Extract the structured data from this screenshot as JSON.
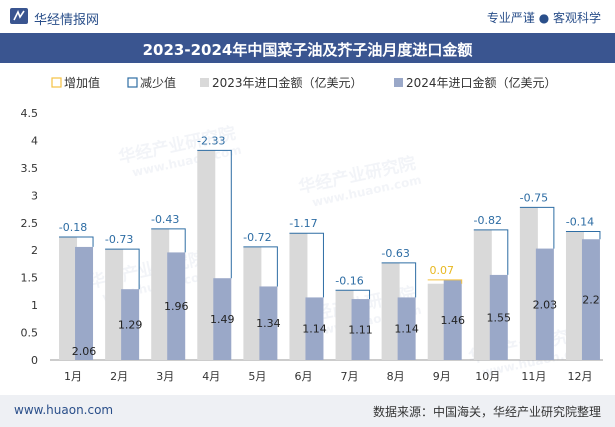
{
  "header": {
    "brand": "华经情报网",
    "slogan": "专业严谨 ● 客观科学"
  },
  "title": "2023-2024年中国菜子油及芥子油月度进口金额",
  "footer": {
    "website": "www.huaon.com",
    "source": "数据来源：中国海关，华经产业研究院整理"
  },
  "watermark": {
    "cn": "华经产业研究院",
    "en": "www.huaon.com"
  },
  "colors": {
    "bar2023": "#d9d9d9",
    "bar2024": "#9aa8c8",
    "increase": "#f5c242",
    "decrease": "#2e6da4",
    "increase_label": "#e8b820",
    "decrease_label": "#2e6da4",
    "brand": "#3a5590"
  },
  "chart_data": {
    "type": "bar",
    "categories": [
      "1月",
      "2月",
      "3月",
      "4月",
      "5月",
      "6月",
      "7月",
      "8月",
      "9月",
      "10月",
      "11月",
      "12月"
    ],
    "series": [
      {
        "name": "2023年进口金额（亿美元）",
        "values": [
          2.24,
          2.02,
          2.39,
          3.82,
          2.06,
          2.31,
          1.27,
          1.77,
          1.39,
          2.37,
          2.78,
          2.34
        ]
      },
      {
        "name": "2024年进口金额（亿美元）",
        "values": [
          2.06,
          1.29,
          1.96,
          1.49,
          1.34,
          1.14,
          1.11,
          1.14,
          1.46,
          1.55,
          2.03,
          2.2
        ]
      }
    ],
    "changes": [
      -0.18,
      -0.73,
      -0.43,
      -2.33,
      -0.72,
      -1.17,
      -0.16,
      -0.63,
      0.07,
      -0.82,
      -0.75,
      -0.14
    ],
    "change_labels": [
      "-0.18",
      "-0.73",
      "-0.43",
      "-2.33",
      "-0.72",
      "-1.17",
      "-0.16",
      "-0.63",
      "0.07",
      "-0.82",
      "-0.75",
      "-0.14"
    ],
    "value_labels_2024": [
      "2.06",
      "1.29",
      "1.96",
      "1.49",
      "1.34",
      "1.14",
      "1.11",
      "1.14",
      "1.46",
      "1.55",
      "2.03",
      "2.2"
    ],
    "legend": [
      "增加值",
      "减少值",
      "2023年进口金额（亿美元）",
      "2024年进口金额（亿美元）"
    ],
    "yticks": [
      "0",
      "0.5",
      "1",
      "1.5",
      "2",
      "2.5",
      "3",
      "3.5",
      "4",
      "4.5"
    ],
    "ylim": [
      0,
      4.5
    ],
    "legend_position": "top",
    "grid": false
  }
}
